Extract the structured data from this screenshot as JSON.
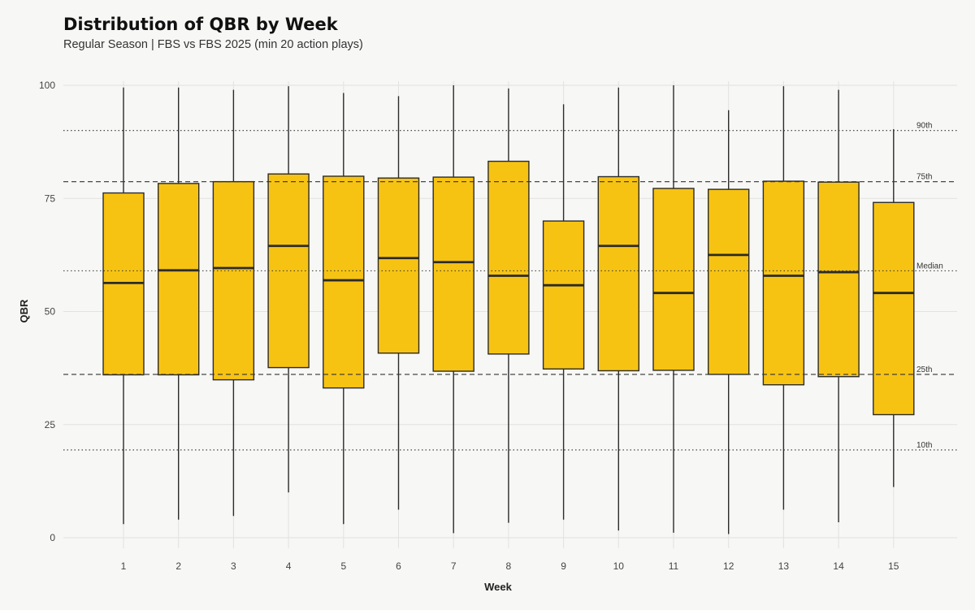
{
  "title": "Distribution of QBR by Week",
  "subtitle": "Regular Season | FBS vs FBS 2025 (min 20 action plays)",
  "colors": {
    "box_fill": "#f7c313",
    "box_stroke": "#2b2b2b",
    "background": "#f7f7f5",
    "grid": "#e2e2e2"
  },
  "chart_data": {
    "type": "boxplot",
    "xlabel": "Week",
    "ylabel": "QBR",
    "ylim": [
      0,
      100
    ],
    "yticks": [
      0,
      25,
      50,
      75,
      100
    ],
    "categories": [
      "1",
      "2",
      "3",
      "4",
      "5",
      "6",
      "7",
      "8",
      "9",
      "10",
      "11",
      "12",
      "13",
      "14",
      "15"
    ],
    "boxes": [
      {
        "week": "1",
        "min": 3,
        "q1": 36,
        "median": 56.3,
        "q3": 76.2,
        "max": 99.5
      },
      {
        "week": "2",
        "min": 4,
        "q1": 36,
        "median": 59.1,
        "q3": 78.3,
        "max": 99.5
      },
      {
        "week": "3",
        "min": 4.8,
        "q1": 34.9,
        "median": 59.6,
        "q3": 78.7,
        "max": 99
      },
      {
        "week": "4",
        "min": 10,
        "q1": 37.6,
        "median": 64.5,
        "q3": 80.4,
        "max": 99.8
      },
      {
        "week": "5",
        "min": 3,
        "q1": 33.1,
        "median": 56.9,
        "q3": 79.9,
        "max": 98.3
      },
      {
        "week": "6",
        "min": 6.2,
        "q1": 40.8,
        "median": 61.8,
        "q3": 79.5,
        "max": 97.6
      },
      {
        "week": "7",
        "min": 1,
        "q1": 36.8,
        "median": 60.9,
        "q3": 79.7,
        "max": 100
      },
      {
        "week": "8",
        "min": 3.3,
        "q1": 40.6,
        "median": 57.9,
        "q3": 83.2,
        "max": 99.3
      },
      {
        "week": "9",
        "min": 4,
        "q1": 37.3,
        "median": 55.8,
        "q3": 70,
        "max": 95.8
      },
      {
        "week": "10",
        "min": 1.6,
        "q1": 36.9,
        "median": 64.5,
        "q3": 79.8,
        "max": 99.5
      },
      {
        "week": "11",
        "min": 1.1,
        "q1": 37,
        "median": 54.1,
        "q3": 77.2,
        "max": 100
      },
      {
        "week": "12",
        "min": 0.8,
        "q1": 36.1,
        "median": 62.5,
        "q3": 77,
        "max": 94.5
      },
      {
        "week": "13",
        "min": 6.2,
        "q1": 33.8,
        "median": 57.9,
        "q3": 78.8,
        "max": 99.8
      },
      {
        "week": "14",
        "min": 3.4,
        "q1": 35.6,
        "median": 58.7,
        "q3": 78.6,
        "max": 99
      },
      {
        "week": "15",
        "min": 11.2,
        "q1": 27.2,
        "median": 54.1,
        "q3": 74.1,
        "max": 90.3
      }
    ],
    "reference_lines": [
      {
        "label": "90th",
        "value": 90,
        "style": "dotted"
      },
      {
        "label": "75th",
        "value": 78.7,
        "style": "dashed"
      },
      {
        "label": "Median",
        "value": 59,
        "style": "dotted"
      },
      {
        "label": "25th",
        "value": 36.1,
        "style": "dashed"
      },
      {
        "label": "10th",
        "value": 19.4,
        "style": "dotted"
      }
    ],
    "grid": true
  }
}
